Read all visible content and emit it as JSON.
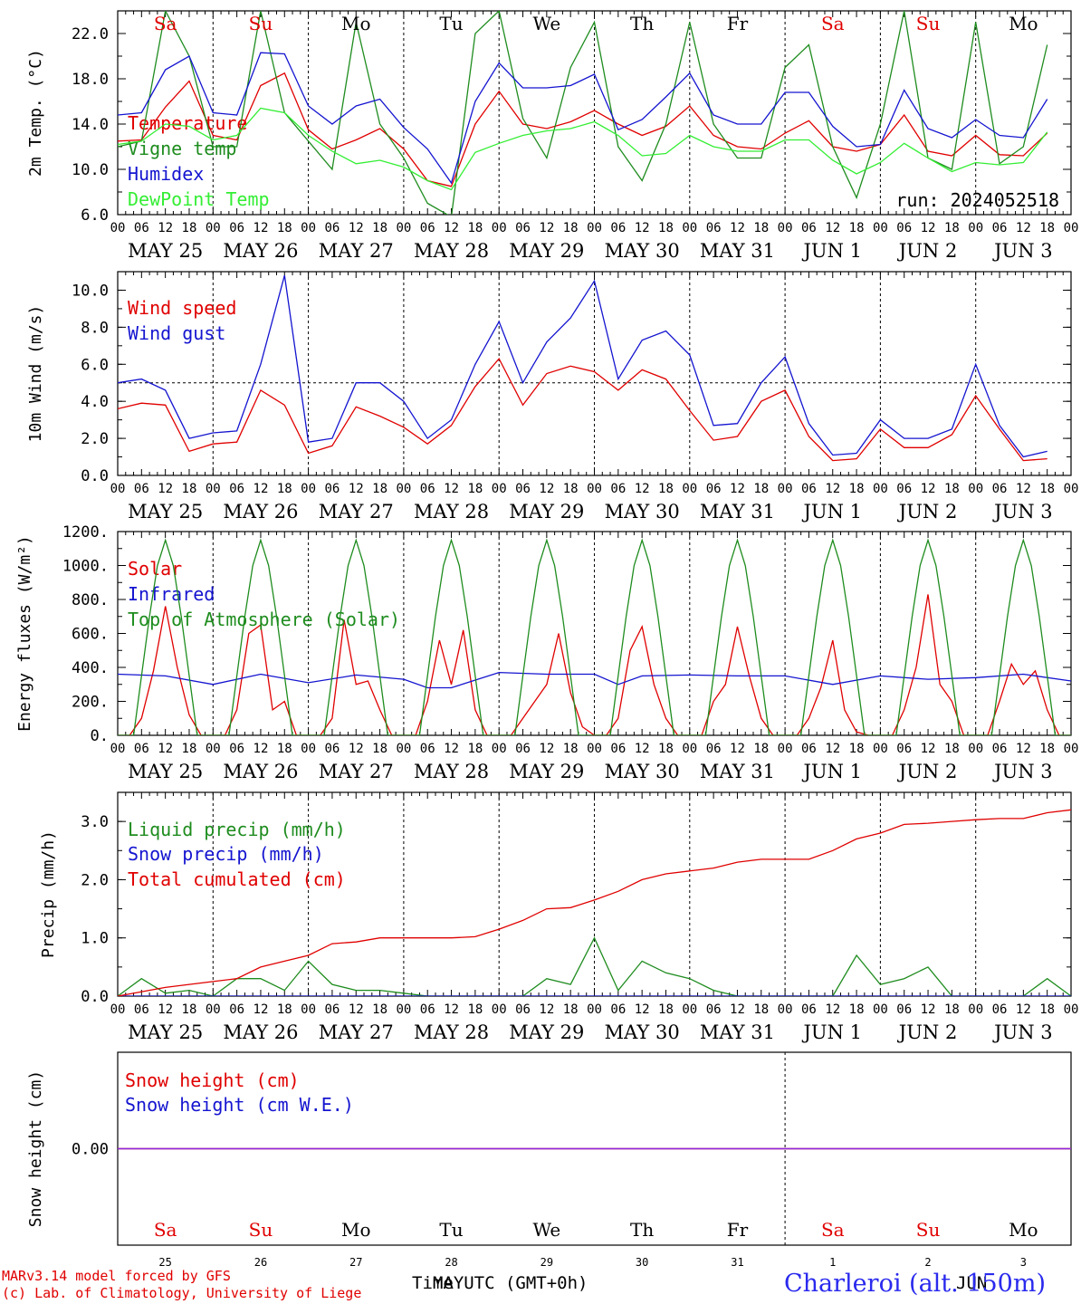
{
  "run_label": "run: 2024052518",
  "x_day_labels": [
    "MAY 25",
    "MAY 26",
    "MAY 27",
    "MAY 28",
    "MAY 29",
    "MAY 30",
    "MAY 31",
    "JUN  1",
    "JUN  2",
    "JUN  3"
  ],
  "x_hour_labels": [
    "00",
    "06",
    "12",
    "18"
  ],
  "weekdays": [
    {
      "label": "Sa",
      "color": "#e00000"
    },
    {
      "label": "Su",
      "color": "#e00000"
    },
    {
      "label": "Mo",
      "color": "#000000"
    },
    {
      "label": "Tu",
      "color": "#000000"
    },
    {
      "label": "We",
      "color": "#000000"
    },
    {
      "label": "Th",
      "color": "#000000"
    },
    {
      "label": "Fr",
      "color": "#000000"
    },
    {
      "label": "Sa",
      "color": "#e00000"
    },
    {
      "label": "Su",
      "color": "#e00000"
    },
    {
      "label": "Mo",
      "color": "#000000"
    }
  ],
  "bottom_dates": [
    "25",
    "26",
    "27",
    "28",
    "29",
    "30",
    "31",
    "1",
    "2",
    "3"
  ],
  "footer": {
    "model": "MARv3.14 model forced by GFS",
    "credit": "(c) Lab. of Climatology, University of Liege",
    "time_label": "Time UTC (GMT+0h)",
    "may_label": "MAY",
    "jun_label": "JUN",
    "station": "Charleroi (alt. 150m)"
  },
  "chart_data": [
    {
      "type": "line",
      "ylabel": "2m Temp. (°C)",
      "ylim": [
        6,
        24
      ],
      "yticks": [
        6.0,
        10.0,
        14.0,
        18.0,
        22.0
      ],
      "ytick_labels": [
        "6.0",
        "10.0",
        "14.0",
        "18.0",
        "22.0"
      ],
      "series": [
        {
          "name": "Temperature",
          "color": "#e00000",
          "x": [
            0,
            6,
            12,
            18,
            24,
            30,
            36,
            42,
            48,
            54,
            60,
            66,
            72,
            78,
            84,
            90,
            96,
            102,
            108,
            114,
            120,
            126,
            132,
            138,
            144,
            150,
            156,
            162,
            168,
            174,
            180,
            186,
            192,
            198,
            204,
            210,
            216,
            222,
            228,
            234
          ],
          "values": [
            12.5,
            12.6,
            15.5,
            17.8,
            13.0,
            12.6,
            17.4,
            18.5,
            13.5,
            11.8,
            12.6,
            13.6,
            11.8,
            9.0,
            8.5,
            14.0,
            16.9,
            14.0,
            13.6,
            14.2,
            15.2,
            14.0,
            13.0,
            13.8,
            15.6,
            13.0,
            12.0,
            11.8,
            13.2,
            14.3,
            12.0,
            11.6,
            12.2,
            14.8,
            11.6,
            11.2,
            13.0,
            11.3,
            11.2,
            13.2
          ]
        },
        {
          "name": "Vigne temp",
          "color": "#1e8c1e",
          "x": [
            0,
            6,
            12,
            18,
            24,
            30,
            36,
            42,
            48,
            54,
            60,
            66,
            72,
            78,
            84,
            90,
            96,
            102,
            108,
            114,
            120,
            126,
            132,
            138,
            144,
            150,
            156,
            162,
            168,
            174,
            180,
            186,
            192,
            198,
            204,
            210,
            216,
            222,
            228,
            234
          ],
          "values": [
            12.0,
            12.5,
            24.0,
            20.0,
            12.0,
            12.0,
            24.0,
            15.0,
            12.5,
            10.0,
            23.0,
            14.0,
            11.0,
            7.0,
            5.8,
            22.0,
            24.0,
            14.5,
            11.0,
            19.0,
            23.0,
            12.0,
            9.0,
            14.0,
            23.0,
            14.0,
            11.0,
            11.0,
            19.0,
            21.0,
            12.0,
            7.5,
            14.0,
            24.0,
            11.0,
            10.0,
            23.0,
            10.5,
            12.0,
            21.0
          ]
        },
        {
          "name": "Humidex",
          "color": "#1414d0",
          "x": [
            0,
            6,
            12,
            18,
            24,
            30,
            36,
            42,
            48,
            54,
            60,
            66,
            72,
            78,
            84,
            90,
            96,
            102,
            108,
            114,
            120,
            126,
            132,
            138,
            144,
            150,
            156,
            162,
            168,
            174,
            180,
            186,
            192,
            198,
            204,
            210,
            216,
            222,
            228,
            234
          ],
          "values": [
            14.8,
            15.0,
            18.8,
            20.0,
            15.0,
            14.8,
            20.3,
            20.2,
            15.6,
            14.0,
            15.6,
            16.2,
            13.7,
            11.8,
            8.8,
            16.0,
            19.4,
            17.2,
            17.2,
            17.4,
            18.4,
            13.5,
            14.4,
            16.4,
            18.5,
            14.8,
            14.0,
            14.0,
            16.8,
            16.8,
            13.8,
            12.0,
            12.2,
            17.0,
            13.6,
            12.8,
            14.4,
            13.0,
            12.8,
            16.2
          ]
        },
        {
          "name": "DewPoint Temp",
          "color": "#33ee33",
          "x": [
            0,
            6,
            12,
            18,
            24,
            30,
            36,
            42,
            48,
            54,
            60,
            66,
            72,
            78,
            84,
            90,
            96,
            102,
            108,
            114,
            120,
            126,
            132,
            138,
            144,
            150,
            156,
            162,
            168,
            174,
            180,
            186,
            192,
            198,
            204,
            210,
            216,
            222,
            228,
            234
          ],
          "values": [
            12.2,
            12.5,
            14.0,
            13.8,
            12.6,
            13.0,
            15.4,
            15.0,
            13.0,
            11.6,
            10.5,
            10.8,
            10.2,
            9.0,
            8.2,
            11.5,
            12.3,
            13.0,
            13.4,
            13.6,
            14.2,
            13.0,
            11.2,
            11.4,
            13.0,
            12.0,
            11.6,
            11.6,
            12.6,
            12.6,
            10.8,
            9.6,
            10.6,
            12.3,
            11.0,
            9.8,
            10.6,
            10.4,
            10.6,
            13.3
          ]
        }
      ]
    },
    {
      "type": "line",
      "ylabel": "10m Wind (m/s)",
      "ylim": [
        0,
        11
      ],
      "yticks": [
        0,
        2,
        4,
        6,
        8,
        10
      ],
      "ytick_labels": [
        "0.0",
        "2.0",
        "4.0",
        "6.0",
        "8.0",
        "10.0"
      ],
      "reference_line": 5,
      "series": [
        {
          "name": "Wind speed",
          "color": "#e00000",
          "x": [
            0,
            6,
            12,
            18,
            24,
            30,
            36,
            42,
            48,
            54,
            60,
            66,
            72,
            78,
            84,
            90,
            96,
            102,
            108,
            114,
            120,
            126,
            132,
            138,
            144,
            150,
            156,
            162,
            168,
            174,
            180,
            186,
            192,
            198,
            204,
            210,
            216,
            222,
            228,
            234
          ],
          "values": [
            3.6,
            3.9,
            3.8,
            1.3,
            1.7,
            1.8,
            4.6,
            3.8,
            1.2,
            1.6,
            3.7,
            3.2,
            2.6,
            1.7,
            2.7,
            4.8,
            6.3,
            3.8,
            5.5,
            5.9,
            5.6,
            4.6,
            5.7,
            5.2,
            3.5,
            1.9,
            2.1,
            4.0,
            4.6,
            2.1,
            0.8,
            0.9,
            2.5,
            1.5,
            1.5,
            2.2,
            4.3,
            2.5,
            0.8,
            0.9
          ]
        },
        {
          "name": "Wind gust",
          "color": "#1414d0",
          "x": [
            0,
            6,
            12,
            18,
            24,
            30,
            36,
            42,
            48,
            54,
            60,
            66,
            72,
            78,
            84,
            90,
            96,
            102,
            108,
            114,
            120,
            126,
            132,
            138,
            144,
            150,
            156,
            162,
            168,
            174,
            180,
            186,
            192,
            198,
            204,
            210,
            216,
            222,
            228,
            234
          ],
          "values": [
            5.0,
            5.2,
            4.6,
            2.0,
            2.3,
            2.4,
            6.0,
            10.8,
            1.8,
            2.0,
            5.0,
            5.0,
            4.0,
            2.0,
            3.0,
            6.0,
            8.3,
            5.0,
            7.2,
            8.5,
            10.5,
            5.2,
            7.3,
            7.8,
            6.5,
            2.7,
            2.8,
            5.0,
            6.4,
            2.8,
            1.1,
            1.2,
            3.0,
            2.0,
            2.0,
            2.5,
            6.0,
            2.7,
            1.0,
            1.3
          ]
        }
      ]
    },
    {
      "type": "line",
      "ylabel": "Energy fluxes (W/m²)",
      "ylim": [
        0,
        1200
      ],
      "yticks": [
        0,
        200,
        400,
        600,
        800,
        1000,
        1200
      ],
      "ytick_labels": [
        "0.",
        "200.",
        "400.",
        "600.",
        "800.",
        "1000.",
        "1200."
      ],
      "series": [
        {
          "name": "Solar",
          "color": "#e00000",
          "x": [
            0,
            3,
            6,
            9,
            12,
            15,
            18,
            21,
            24,
            27,
            30,
            33,
            36,
            39,
            42,
            45,
            48,
            51,
            54,
            57,
            60,
            63,
            66,
            69,
            72,
            75,
            78,
            81,
            84,
            87,
            90,
            93,
            96,
            99,
            102,
            105,
            108,
            111,
            114,
            117,
            120,
            123,
            126,
            129,
            132,
            135,
            138,
            141,
            144,
            147,
            150,
            153,
            156,
            159,
            162,
            165,
            168,
            171,
            174,
            177,
            180,
            183,
            186,
            189,
            192,
            195,
            198,
            201,
            204,
            207,
            210,
            213,
            216,
            219,
            222,
            225,
            228,
            231,
            234,
            237,
            240
          ],
          "values": [
            0,
            0,
            100,
            380,
            760,
            400,
            120,
            0,
            0,
            0,
            150,
            600,
            650,
            150,
            200,
            0,
            0,
            0,
            100,
            680,
            300,
            320,
            150,
            0,
            0,
            0,
            200,
            560,
            300,
            620,
            150,
            0,
            0,
            0,
            100,
            200,
            300,
            600,
            250,
            50,
            0,
            0,
            100,
            500,
            640,
            300,
            100,
            0,
            0,
            0,
            200,
            300,
            640,
            350,
            100,
            0,
            0,
            0,
            100,
            280,
            560,
            150,
            20,
            0,
            0,
            0,
            150,
            400,
            830,
            300,
            200,
            0,
            0,
            0,
            200,
            420,
            300,
            380,
            150,
            0,
            0
          ]
        },
        {
          "name": "Infrared",
          "color": "#1414d0",
          "x": [
            0,
            12,
            24,
            36,
            48,
            60,
            72,
            78,
            84,
            96,
            108,
            120,
            126,
            132,
            144,
            156,
            168,
            180,
            192,
            204,
            216,
            228,
            240
          ],
          "values": [
            360,
            350,
            300,
            360,
            310,
            355,
            330,
            280,
            280,
            370,
            360,
            360,
            300,
            350,
            355,
            350,
            350,
            300,
            350,
            330,
            340,
            360,
            320
          ]
        },
        {
          "name": "Top of Atmosphere (Solar)",
          "color": "#1e8c1e",
          "x": [
            0,
            2,
            4,
            6,
            8,
            10,
            12,
            14,
            16,
            18,
            20,
            22,
            24
          ],
          "values": [
            0,
            0,
            0,
            350,
            700,
            1000,
            1150,
            1000,
            700,
            350,
            0,
            0,
            0
          ],
          "repeat_daily": true
        }
      ]
    },
    {
      "type": "line",
      "ylabel": "Precip (mm/h)",
      "ylim": [
        0,
        3.5
      ],
      "yticks": [
        0,
        1,
        2,
        3
      ],
      "ytick_labels": [
        "0.0",
        "1.0",
        "2.0",
        "3.0"
      ],
      "series": [
        {
          "name": "Liquid precip (mm/h)",
          "color": "#1e8c1e",
          "x": [
            0,
            6,
            12,
            18,
            24,
            30,
            36,
            42,
            48,
            54,
            60,
            66,
            72,
            78,
            84,
            90,
            96,
            102,
            108,
            114,
            120,
            126,
            132,
            138,
            144,
            150,
            156,
            162,
            168,
            174,
            180,
            186,
            192,
            198,
            204,
            210,
            216,
            222,
            228,
            234,
            240
          ],
          "values": [
            0,
            0.3,
            0.05,
            0.1,
            0,
            0.3,
            0.3,
            0.1,
            0.6,
            0.2,
            0.1,
            0.1,
            0.05,
            0,
            0,
            0,
            0,
            0,
            0.3,
            0.2,
            1.0,
            0.1,
            0.6,
            0.4,
            0.3,
            0.1,
            0,
            0,
            0,
            0,
            0,
            0.7,
            0.2,
            0.3,
            0.5,
            0,
            0,
            0,
            0,
            0.3,
            0
          ]
        },
        {
          "name": "Snow precip (mm/h)",
          "color": "#1414d0",
          "x": [
            0,
            240
          ],
          "values": [
            0,
            0
          ]
        },
        {
          "name": "Total cumulated (cm)",
          "color": "#e00000",
          "x": [
            0,
            12,
            24,
            30,
            36,
            42,
            48,
            54,
            60,
            66,
            72,
            78,
            84,
            90,
            96,
            102,
            108,
            114,
            120,
            126,
            132,
            138,
            144,
            150,
            156,
            162,
            168,
            174,
            180,
            186,
            192,
            198,
            204,
            210,
            216,
            222,
            228,
            234,
            240
          ],
          "values": [
            0,
            0.15,
            0.25,
            0.3,
            0.5,
            0.6,
            0.7,
            0.9,
            0.93,
            1.0,
            1.0,
            1.0,
            1.0,
            1.02,
            1.15,
            1.3,
            1.5,
            1.52,
            1.65,
            1.8,
            2.0,
            2.1,
            2.15,
            2.2,
            2.3,
            2.35,
            2.35,
            2.35,
            2.5,
            2.7,
            2.8,
            2.95,
            2.97,
            3.0,
            3.03,
            3.05,
            3.05,
            3.15,
            3.2
          ]
        }
      ]
    },
    {
      "type": "line",
      "ylabel": "Snow height (cm)",
      "ylim": [
        -1,
        1
      ],
      "yticks": [
        0
      ],
      "ytick_labels": [
        "0.00"
      ],
      "series": [
        {
          "name": "Snow height (cm)",
          "color": "#e00000",
          "x": [
            0,
            240
          ],
          "values": [
            0,
            0
          ]
        },
        {
          "name": "Snow height (cm W.E.)",
          "color": "#1414d0",
          "x": [
            0,
            240
          ],
          "values": [
            0,
            0
          ]
        }
      ]
    }
  ]
}
